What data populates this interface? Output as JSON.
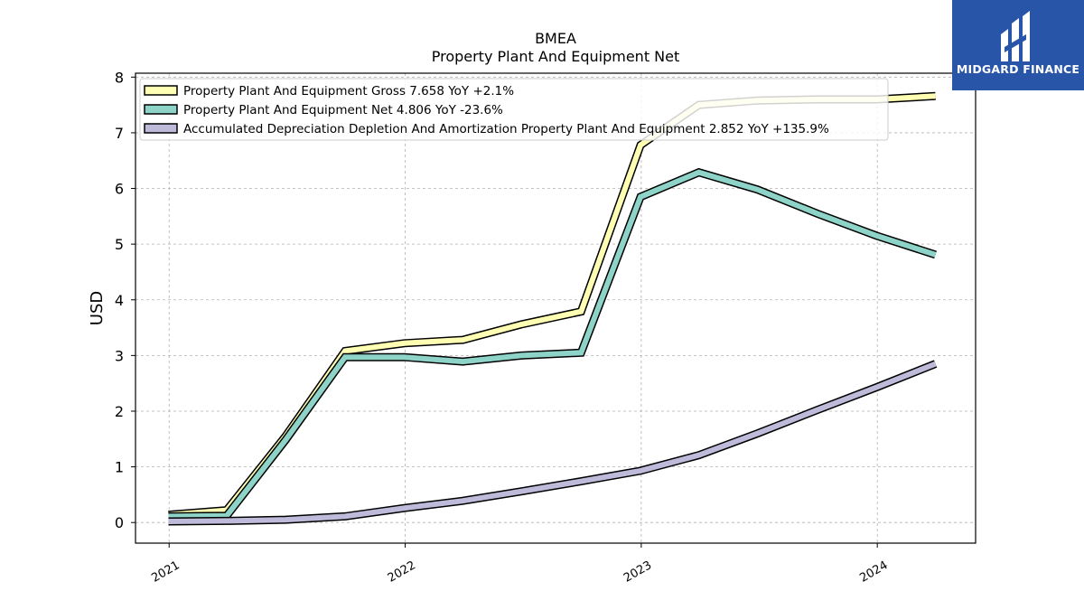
{
  "chart_data": {
    "type": "line",
    "title": "BMEA",
    "subtitle": "Property Plant And Equipment Net",
    "ylabel": "USD",
    "xlabel": "",
    "ylim": [
      -0.37,
      8.07
    ],
    "xlim": [
      "2020-11-10",
      "2024-06-01"
    ],
    "yticks": [
      0,
      1,
      2,
      3,
      4,
      5,
      6,
      7,
      8
    ],
    "xticks": [
      "2021",
      "2022",
      "2023",
      "2024"
    ],
    "grid": true,
    "legend_position": "upper-left",
    "series": [
      {
        "name": "Property Plant And Equipment Gross  7.658 YoY +2.1%",
        "color": "#ffffb3",
        "points": [
          [
            "2020-12-31",
            0.14
          ],
          [
            "2021-03-31",
            0.22
          ],
          [
            "2021-06-30",
            1.55
          ],
          [
            "2021-09-30",
            3.08
          ],
          [
            "2021-12-31",
            3.22
          ],
          [
            "2022-03-31",
            3.28
          ],
          [
            "2022-06-30",
            3.56
          ],
          [
            "2022-09-30",
            3.79
          ],
          [
            "2022-12-31",
            6.78
          ],
          [
            "2023-03-31",
            7.5
          ],
          [
            "2023-06-30",
            7.58
          ],
          [
            "2023-09-30",
            7.6
          ],
          [
            "2023-12-31",
            7.6
          ],
          [
            "2024-03-31",
            7.66
          ]
        ]
      },
      {
        "name": "Property Plant And Equipment Net  4.806 YoY -23.6%",
        "color": "#8dd3c7",
        "points": [
          [
            "2020-12-31",
            0.11
          ],
          [
            "2021-03-31",
            0.12
          ],
          [
            "2021-06-30",
            1.48
          ],
          [
            "2021-09-30",
            2.97
          ],
          [
            "2021-12-31",
            2.97
          ],
          [
            "2022-03-31",
            2.89
          ],
          [
            "2022-06-30",
            3.0
          ],
          [
            "2022-09-30",
            3.05
          ],
          [
            "2022-12-31",
            5.85
          ],
          [
            "2023-03-31",
            6.29
          ],
          [
            "2023-06-30",
            5.98
          ],
          [
            "2023-09-30",
            5.55
          ],
          [
            "2023-12-31",
            5.15
          ],
          [
            "2024-03-31",
            4.81
          ]
        ]
      },
      {
        "name": "Accumulated Depreciation Depletion And Amortization Property Plant And Equipment  2.852 YoY +135.9%",
        "color": "#bebada",
        "points": [
          [
            "2020-12-31",
            0.02
          ],
          [
            "2021-03-31",
            0.03
          ],
          [
            "2021-06-30",
            0.05
          ],
          [
            "2021-09-30",
            0.11
          ],
          [
            "2021-12-31",
            0.26
          ],
          [
            "2022-03-31",
            0.39
          ],
          [
            "2022-06-30",
            0.56
          ],
          [
            "2022-09-30",
            0.74
          ],
          [
            "2022-12-31",
            0.93
          ],
          [
            "2023-03-31",
            1.21
          ],
          [
            "2023-06-30",
            1.6
          ],
          [
            "2023-09-30",
            2.02
          ],
          [
            "2023-12-31",
            2.43
          ],
          [
            "2024-03-31",
            2.85
          ]
        ]
      }
    ]
  },
  "watermark": {
    "name": "MIDGARD FINANCE",
    "color": "#2955a8"
  }
}
